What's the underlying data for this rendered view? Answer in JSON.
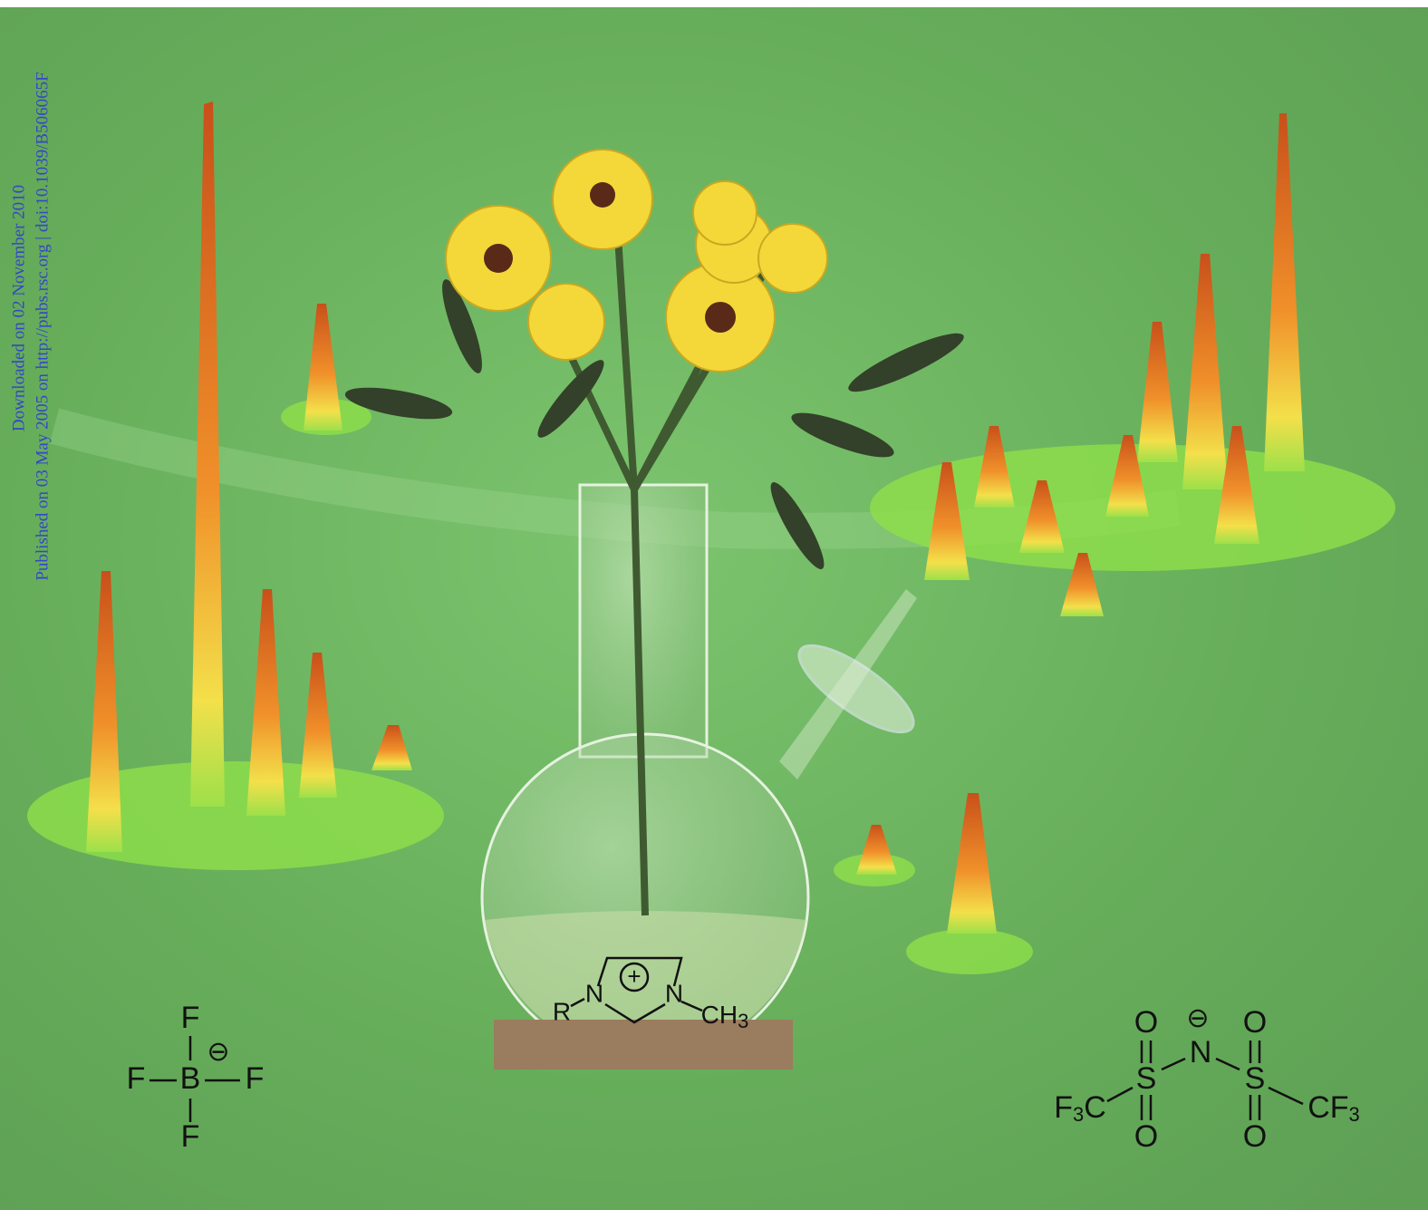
{
  "watermark": {
    "line1": "Downloaded on 02 November 2010",
    "line2": "Published on 03 May 2005 on http://pubs.rsc.org | doi:10.1039/B506065F"
  },
  "tetrafluoroborate": {
    "atoms": [
      "F",
      "F",
      "B",
      "F",
      "F"
    ],
    "charge": "⊖"
  },
  "imidazolium": {
    "substituent": "R",
    "nitrogens": [
      "N",
      "N"
    ],
    "charge": "+",
    "methyl": {
      "symbol": "CH",
      "subscript": "3"
    }
  },
  "triflimide": {
    "oxygens": [
      "O",
      "O",
      "O",
      "O"
    ],
    "sulfurs": [
      "S",
      "S"
    ],
    "nitrogen": "N",
    "charge": "⊖",
    "left_group": {
      "symbol": "F",
      "subscript": "3",
      "tail": "C"
    },
    "right_group": {
      "symbol": "CF",
      "subscript": "3"
    }
  }
}
